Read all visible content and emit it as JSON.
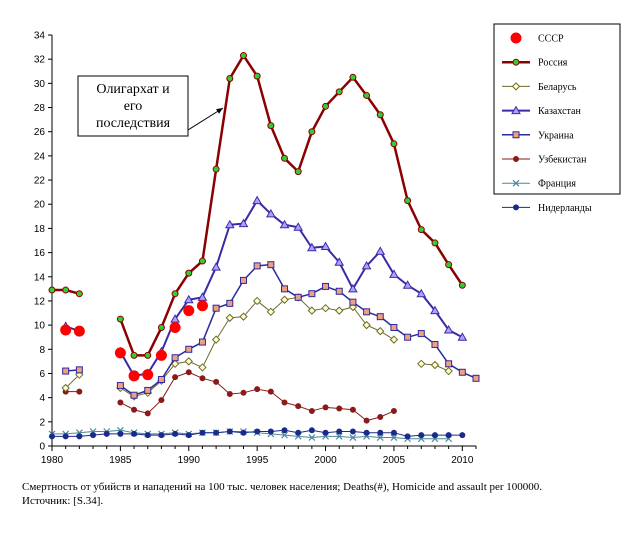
{
  "chart_data": {
    "type": "line",
    "title": "",
    "xlabel": "",
    "ylabel": "",
    "xlim": [
      1980,
      2011
    ],
    "ylim": [
      0,
      34
    ],
    "x_ticks": [
      1980,
      1985,
      1990,
      1995,
      2000,
      2005,
      2010
    ],
    "y_ticks": [
      0,
      2,
      4,
      6,
      8,
      10,
      12,
      14,
      16,
      18,
      20,
      22,
      24,
      26,
      28,
      30,
      32,
      34
    ],
    "grid": false,
    "legend_position": "right",
    "annotation": {
      "lines": [
        "Олигархат и",
        "его",
        "последствия"
      ],
      "points_to": [
        1994,
        32.3
      ]
    },
    "series": [
      {
        "name": "СССР",
        "color": "#ff0000",
        "marker": "circle-big",
        "marker_fill": "#ff0000",
        "line": false,
        "points": [
          [
            1981,
            9.6
          ],
          [
            1982,
            9.5
          ],
          [
            1985,
            7.7
          ],
          [
            1986,
            5.8
          ],
          [
            1987,
            5.9
          ],
          [
            1988,
            7.5
          ],
          [
            1989,
            9.8
          ],
          [
            1990,
            11.2
          ],
          [
            1991,
            11.6
          ]
        ]
      },
      {
        "name": "Россия",
        "color": "#8b0000",
        "marker": "circle",
        "marker_fill": "#33cc33",
        "line": true,
        "width": 2.5,
        "points": [
          [
            1980,
            12.9
          ],
          [
            1981,
            12.9
          ],
          [
            1982,
            12.6
          ],
          null,
          [
            1985,
            10.5
          ],
          [
            1986,
            7.5
          ],
          [
            1987,
            7.5
          ],
          [
            1988,
            9.8
          ],
          [
            1989,
            12.6
          ],
          [
            1990,
            14.3
          ],
          [
            1991,
            15.3
          ],
          [
            1992,
            22.9
          ],
          [
            1993,
            30.4
          ],
          [
            1994,
            32.3
          ],
          [
            1995,
            30.6
          ],
          [
            1996,
            26.5
          ],
          [
            1997,
            23.8
          ],
          [
            1998,
            22.7
          ],
          [
            1999,
            26.0
          ],
          [
            2000,
            28.1
          ],
          [
            2001,
            29.3
          ],
          [
            2002,
            30.5
          ],
          [
            2003,
            29.0
          ],
          [
            2004,
            27.4
          ],
          [
            2005,
            25.0
          ],
          [
            2006,
            20.3
          ],
          [
            2007,
            17.9
          ],
          [
            2008,
            16.8
          ],
          [
            2009,
            15.0
          ],
          [
            2010,
            13.3
          ]
        ]
      },
      {
        "name": "Беларусь",
        "color": "#6b6b2f",
        "marker": "diamond",
        "marker_fill": "#ffffcc",
        "line": true,
        "width": 1,
        "points": [
          [
            1981,
            4.8
          ],
          [
            1982,
            5.9
          ],
          null,
          [
            1985,
            4.8
          ],
          [
            1986,
            4.1
          ],
          [
            1987,
            4.4
          ],
          [
            1988,
            5.4
          ],
          [
            1989,
            6.8
          ],
          [
            1990,
            7.0
          ],
          [
            1991,
            6.5
          ],
          [
            1992,
            8.8
          ],
          [
            1993,
            10.6
          ],
          [
            1994,
            10.7
          ],
          [
            1995,
            12.0
          ],
          [
            1996,
            11.1
          ],
          [
            1997,
            12.1
          ],
          [
            1998,
            12.3
          ],
          [
            1999,
            11.2
          ],
          [
            2000,
            11.4
          ],
          [
            2001,
            11.2
          ],
          [
            2002,
            11.5
          ],
          [
            2003,
            10.0
          ],
          [
            2004,
            9.5
          ],
          [
            2005,
            8.8
          ],
          null,
          [
            2007,
            6.8
          ],
          [
            2008,
            6.7
          ],
          [
            2009,
            6.2
          ]
        ]
      },
      {
        "name": "Казахстан",
        "color": "#3a2aa6",
        "marker": "triangle",
        "marker_fill": "#a9a3ff",
        "line": true,
        "width": 2,
        "points": [
          [
            1981,
            9.9
          ],
          [
            1982,
            9.5
          ],
          null,
          [
            1985,
            7.8
          ],
          [
            1986,
            5.8
          ],
          [
            1987,
            6.0
          ],
          [
            1988,
            7.8
          ],
          [
            1989,
            10.5
          ],
          [
            1990,
            12.1
          ],
          [
            1991,
            12.3
          ],
          [
            1992,
            14.8
          ],
          [
            1993,
            18.3
          ],
          [
            1994,
            18.4
          ],
          [
            1995,
            20.3
          ],
          [
            1996,
            19.2
          ],
          [
            1997,
            18.3
          ],
          [
            1998,
            18.1
          ],
          [
            1999,
            16.4
          ],
          [
            2000,
            16.5
          ],
          [
            2001,
            15.2
          ],
          [
            2002,
            13.0
          ],
          [
            2003,
            14.9
          ],
          [
            2004,
            16.1
          ],
          [
            2005,
            14.2
          ],
          [
            2006,
            13.3
          ],
          [
            2007,
            12.6
          ],
          [
            2008,
            11.2
          ],
          [
            2009,
            9.6
          ],
          [
            2010,
            9.0
          ]
        ]
      },
      {
        "name": "Украина",
        "color": "#2a2aa0",
        "marker": "square",
        "marker_fill": "#f0a080",
        "line": true,
        "width": 1.5,
        "points": [
          [
            1981,
            6.2
          ],
          [
            1982,
            6.3
          ],
          null,
          [
            1985,
            5.0
          ],
          [
            1986,
            4.2
          ],
          [
            1987,
            4.6
          ],
          [
            1988,
            5.5
          ],
          [
            1989,
            7.3
          ],
          [
            1990,
            8.0
          ],
          [
            1991,
            8.6
          ],
          [
            1992,
            11.4
          ],
          [
            1993,
            11.8
          ],
          [
            1994,
            13.7
          ],
          [
            1995,
            14.9
          ],
          [
            1996,
            15.0
          ],
          [
            1997,
            13.0
          ],
          [
            1998,
            12.3
          ],
          [
            1999,
            12.6
          ],
          [
            2000,
            13.2
          ],
          [
            2001,
            12.8
          ],
          [
            2002,
            11.9
          ],
          [
            2003,
            11.1
          ],
          [
            2004,
            10.7
          ],
          [
            2005,
            9.8
          ],
          [
            2006,
            9.0
          ],
          [
            2007,
            9.3
          ],
          [
            2008,
            8.4
          ],
          [
            2009,
            6.8
          ],
          [
            2010,
            6.1
          ],
          [
            2011,
            5.6
          ]
        ]
      },
      {
        "name": "Узбекистан",
        "color": "#8b1a1a",
        "marker": "circle-small",
        "marker_fill": "#8b1a1a",
        "line": true,
        "width": 1,
        "points": [
          [
            1981,
            4.5
          ],
          [
            1982,
            4.5
          ],
          null,
          [
            1985,
            3.6
          ],
          [
            1986,
            3.0
          ],
          [
            1987,
            2.7
          ],
          [
            1988,
            3.8
          ],
          [
            1989,
            5.7
          ],
          [
            1990,
            6.1
          ],
          [
            1991,
            5.6
          ],
          [
            1992,
            5.3
          ],
          [
            1993,
            4.3
          ],
          [
            1994,
            4.4
          ],
          [
            1995,
            4.7
          ],
          [
            1996,
            4.5
          ],
          [
            1997,
            3.6
          ],
          [
            1998,
            3.3
          ],
          [
            1999,
            2.9
          ],
          [
            2000,
            3.2
          ],
          [
            2001,
            3.1
          ],
          [
            2002,
            3.0
          ],
          [
            2003,
            2.1
          ],
          [
            2004,
            2.4
          ],
          [
            2005,
            2.9
          ]
        ]
      },
      {
        "name": "Франция",
        "color": "#4a8a9a",
        "marker": "x",
        "marker_fill": "#4a8a9a",
        "line": true,
        "width": 1,
        "points": [
          [
            1980,
            1.0
          ],
          [
            1981,
            1.0
          ],
          [
            1982,
            1.1
          ],
          [
            1983,
            1.2
          ],
          [
            1984,
            1.2
          ],
          [
            1985,
            1.3
          ],
          [
            1986,
            1.1
          ],
          [
            1987,
            1.0
          ],
          [
            1988,
            1.0
          ],
          [
            1989,
            1.1
          ],
          [
            1990,
            1.0
          ],
          [
            1991,
            1.1
          ],
          [
            1992,
            1.1
          ],
          [
            1993,
            1.2
          ],
          [
            1994,
            1.2
          ],
          [
            1995,
            1.1
          ],
          [
            1996,
            1.0
          ],
          [
            1997,
            0.9
          ],
          [
            1998,
            0.8
          ],
          [
            1999,
            0.7
          ],
          [
            2000,
            0.8
          ],
          [
            2001,
            0.8
          ],
          [
            2002,
            0.7
          ],
          [
            2003,
            0.8
          ],
          [
            2004,
            0.7
          ],
          [
            2005,
            0.7
          ],
          [
            2006,
            0.6
          ],
          [
            2007,
            0.6
          ],
          [
            2008,
            0.6
          ],
          [
            2009,
            0.6
          ]
        ]
      },
      {
        "name": "Нидерланды",
        "color": "#1a2a8a",
        "marker": "circle-small",
        "marker_fill": "#1a2a8a",
        "line": true,
        "width": 1,
        "points": [
          [
            1980,
            0.8
          ],
          [
            1981,
            0.8
          ],
          [
            1982,
            0.8
          ],
          [
            1983,
            0.9
          ],
          [
            1984,
            1.0
          ],
          [
            1985,
            1.0
          ],
          [
            1986,
            1.0
          ],
          [
            1987,
            0.9
          ],
          [
            1988,
            0.9
          ],
          [
            1989,
            1.0
          ],
          [
            1990,
            0.9
          ],
          [
            1991,
            1.1
          ],
          [
            1992,
            1.1
          ],
          [
            1993,
            1.2
          ],
          [
            1994,
            1.1
          ],
          [
            1995,
            1.2
          ],
          [
            1996,
            1.2
          ],
          [
            1997,
            1.3
          ],
          [
            1998,
            1.1
          ],
          [
            1999,
            1.3
          ],
          [
            2000,
            1.1
          ],
          [
            2001,
            1.2
          ],
          [
            2002,
            1.2
          ],
          [
            2003,
            1.1
          ],
          [
            2004,
            1.1
          ],
          [
            2005,
            1.1
          ],
          [
            2006,
            0.8
          ],
          [
            2007,
            0.9
          ],
          [
            2008,
            0.9
          ],
          [
            2009,
            0.9
          ],
          [
            2010,
            0.9
          ]
        ]
      }
    ]
  },
  "caption": {
    "line1": "Смертность от убийств и нападений на 100 тыс. человек населения; Deaths(#), Homicide and assault per 100000.",
    "line2": "Источник: [S.34]."
  }
}
